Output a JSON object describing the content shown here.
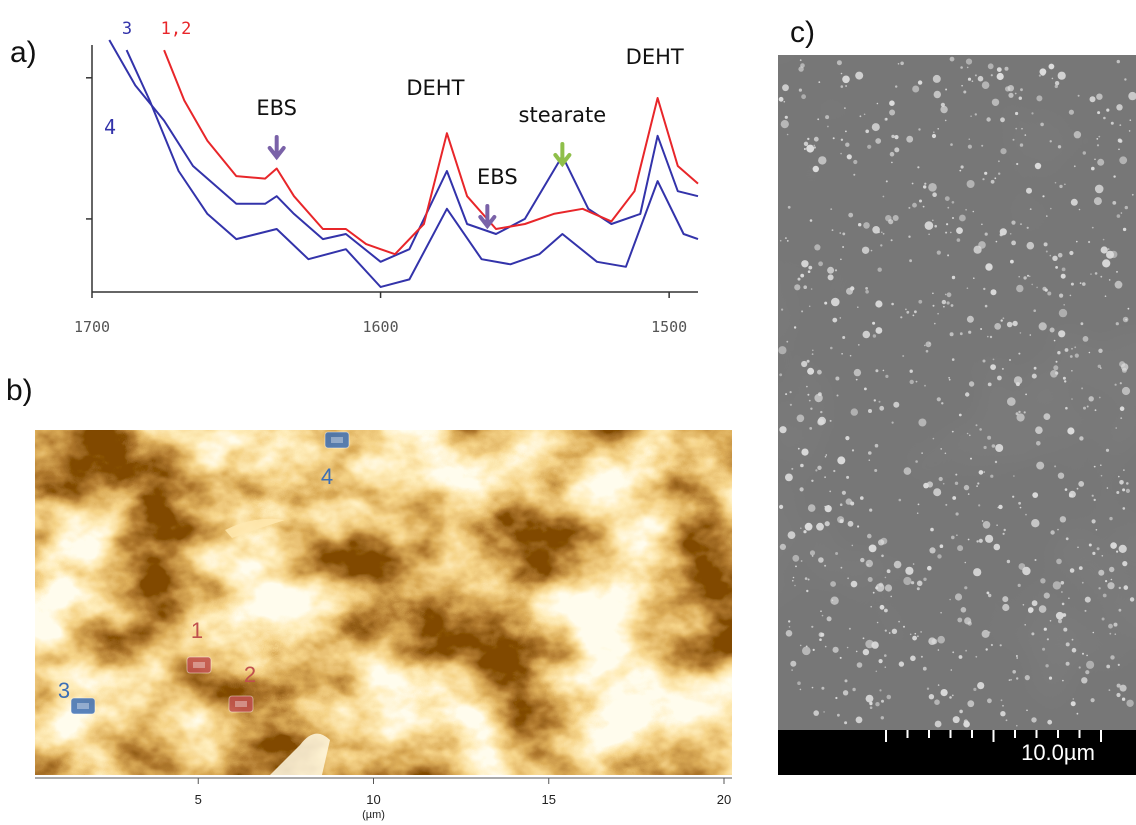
{
  "panel_labels": [
    "a)",
    "b)",
    "c)"
  ],
  "chart_data": [
    {
      "type": "line",
      "xlim": [
        1700,
        1490
      ],
      "xticks": [
        1700,
        1600,
        1500
      ],
      "ylim": [
        0,
        10
      ],
      "yticks": [
        2.9,
        8.5
      ],
      "series": [
        {
          "name": "3",
          "color": "#3333aa",
          "x": [
            1694,
            1685,
            1675,
            1665,
            1650,
            1640,
            1636,
            1630,
            1620,
            1612,
            1600,
            1590,
            1577,
            1570,
            1560,
            1550,
            1537,
            1528,
            1520,
            1510,
            1504,
            1497,
            1490
          ],
          "values": [
            10.0,
            8.2,
            6.8,
            5.0,
            3.5,
            3.5,
            3.8,
            3.1,
            2.1,
            2.3,
            1.2,
            1.7,
            4.8,
            2.7,
            2.3,
            2.9,
            5.4,
            3.3,
            2.7,
            3.1,
            6.2,
            4.0,
            3.8
          ]
        },
        {
          "name": "1,2",
          "color": "#e8262a",
          "x": [
            1675,
            1668,
            1660,
            1650,
            1640,
            1636,
            1630,
            1620,
            1612,
            1605,
            1595,
            1585,
            1577,
            1570,
            1560,
            1550,
            1540,
            1530,
            1520,
            1512,
            1504,
            1497,
            1490
          ],
          "values": [
            9.6,
            7.6,
            6.0,
            4.6,
            4.5,
            4.9,
            3.8,
            2.5,
            2.5,
            1.9,
            1.5,
            2.7,
            6.3,
            3.8,
            2.5,
            2.7,
            3.1,
            3.3,
            2.8,
            4.0,
            7.7,
            5.0,
            4.3
          ]
        },
        {
          "name": "4",
          "color": "#3333aa",
          "x": [
            1688,
            1680,
            1670,
            1660,
            1650,
            1636,
            1625,
            1612,
            1600,
            1590,
            1577,
            1565,
            1555,
            1545,
            1537,
            1525,
            1515,
            1504,
            1495,
            1490
          ],
          "values": [
            9.6,
            7.6,
            4.8,
            3.1,
            2.1,
            2.5,
            1.3,
            1.7,
            0.2,
            0.5,
            3.3,
            1.3,
            1.1,
            1.5,
            2.3,
            1.2,
            1.0,
            4.4,
            2.3,
            2.1
          ]
        }
      ],
      "annotations": [
        {
          "text": "EBS",
          "x": 1636,
          "arrow_color": "#7a62a8"
        },
        {
          "text": "DEHT",
          "x": 1581
        },
        {
          "text": "EBS",
          "x": 1563,
          "arrow_color": "#7a62a8"
        },
        {
          "text": "stearate",
          "x": 1537,
          "arrow_color": "#8fbf4a"
        },
        {
          "text": "DEHT",
          "x": 1505
        }
      ]
    },
    {
      "type": "image",
      "xlim": [
        0,
        20
      ],
      "xticks": [
        5,
        10,
        15,
        20
      ],
      "xlabel": "(µm)",
      "points": [
        {
          "label": "1",
          "color": "#c0504d"
        },
        {
          "label": "2",
          "color": "#c0504d"
        },
        {
          "label": "3",
          "color": "#3d6fb5"
        },
        {
          "label": "4",
          "color": "#3d6fb5"
        }
      ]
    }
  ],
  "scale_bar": "10.0µm"
}
